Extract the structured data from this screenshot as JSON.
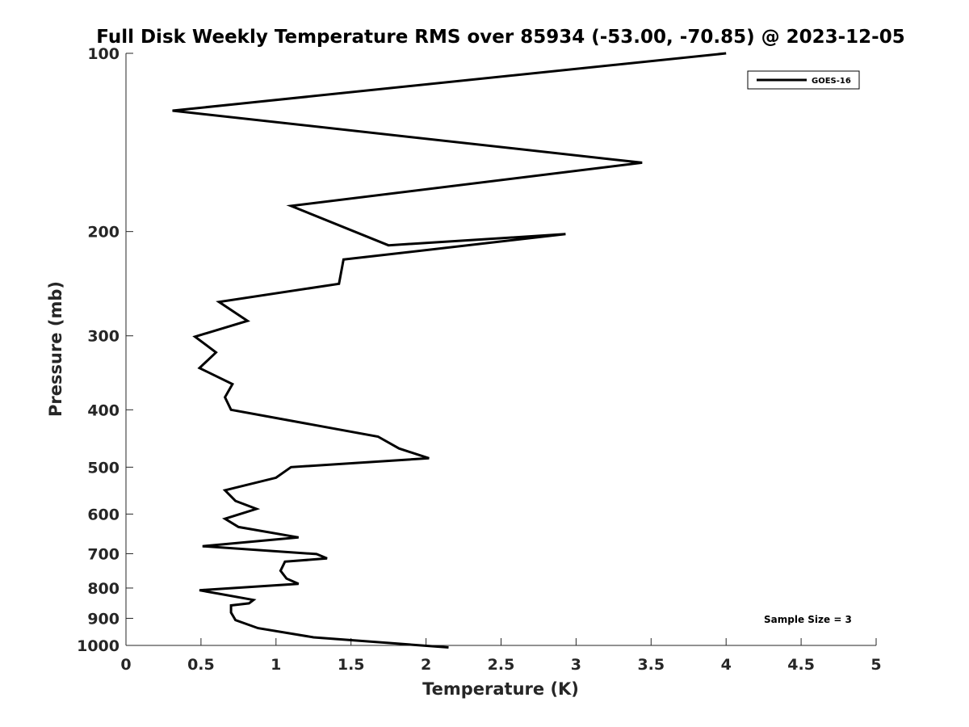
{
  "chart_data": {
    "type": "line",
    "title": "Full Disk Weekly Temperature RMS over 85934 (-53.00, -70.85) @ 2023-12-05",
    "xlabel": "Temperature (K)",
    "ylabel": "Pressure (mb)",
    "xlim": [
      0,
      5
    ],
    "ylim": [
      100,
      1000
    ],
    "y_scale": "log",
    "y_reversed": true,
    "x_ticks": [
      0,
      0.5,
      1,
      1.5,
      2,
      2.5,
      3,
      3.5,
      4,
      4.5,
      5
    ],
    "x_tick_labels": [
      "0",
      "0.5",
      "1",
      "1.5",
      "2",
      "2.5",
      "3",
      "3.5",
      "4",
      "4.5",
      "5"
    ],
    "y_ticks": [
      100,
      200,
      300,
      400,
      500,
      600,
      700,
      800,
      900,
      1000
    ],
    "y_tick_labels": [
      "100",
      "200",
      "300",
      "400",
      "500",
      "600",
      "700",
      "800",
      "900",
      "1000"
    ],
    "grid": false,
    "legend_position": "top-right",
    "annotation": "Sample Size = 3",
    "series": [
      {
        "name": "GOES-16",
        "color": "#000000",
        "x": [
          4.0,
          0.31,
          3.44,
          1.1,
          1.75,
          2.93,
          1.45,
          1.42,
          0.62,
          0.81,
          0.46,
          0.6,
          0.49,
          0.71,
          0.66,
          0.7,
          1.68,
          1.82,
          2.02,
          1.1,
          1.0,
          0.66,
          0.73,
          0.87,
          0.66,
          0.75,
          1.15,
          0.51,
          1.27,
          1.34,
          1.06,
          1.03,
          1.07,
          1.15,
          0.49,
          0.85,
          0.82,
          0.7,
          0.7,
          0.73,
          0.88,
          1.25,
          2.15
        ],
        "y": [
          100,
          125,
          153,
          181,
          211,
          202,
          223,
          245,
          263,
          283,
          301,
          320,
          340,
          362,
          381,
          400,
          444,
          465,
          483,
          500,
          521,
          547,
          570,
          588,
          611,
          631,
          657,
          680,
          701,
          713,
          722,
          748,
          771,
          787,
          807,
          838,
          849,
          856,
          880,
          906,
          935,
          969,
          1008
        ]
      }
    ]
  }
}
